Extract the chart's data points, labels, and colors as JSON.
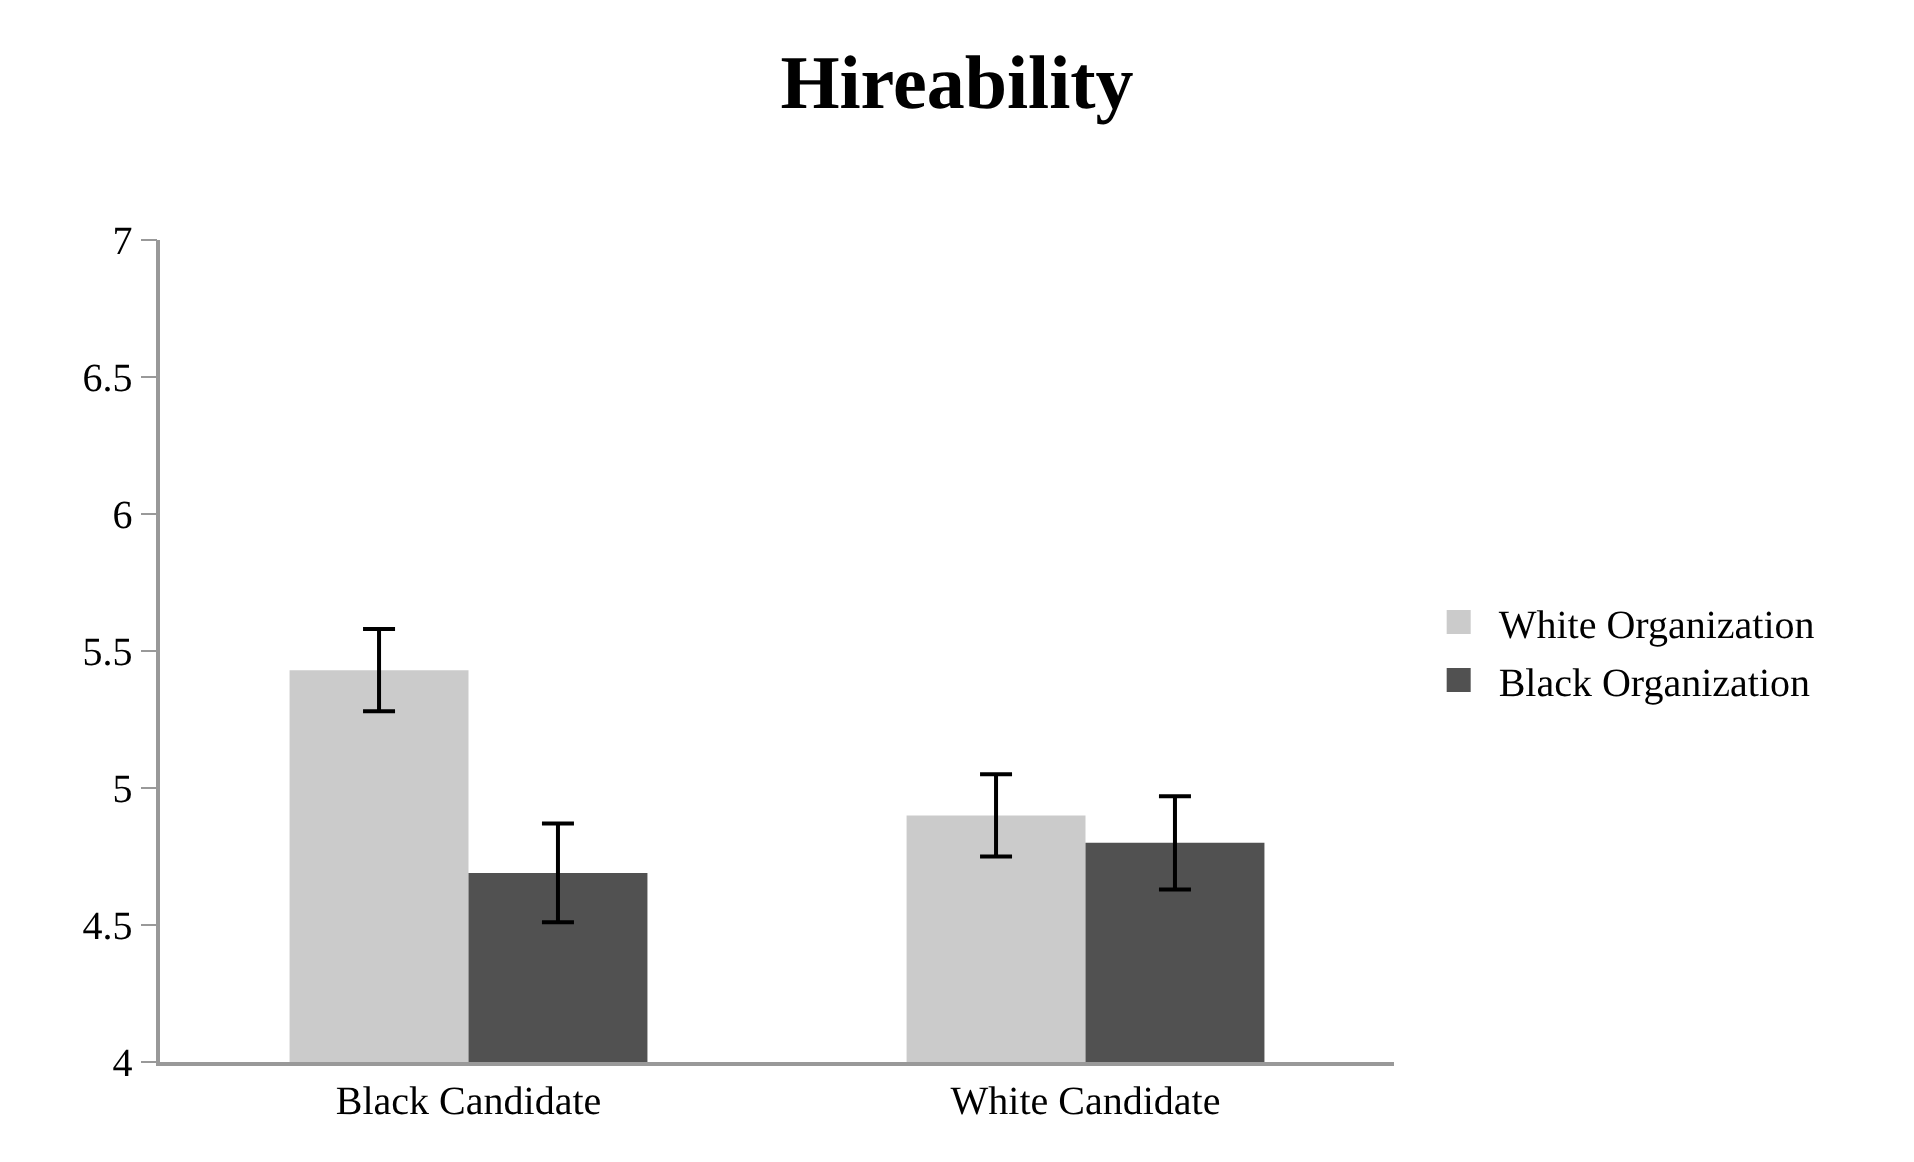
{
  "chart_data": {
    "type": "bar",
    "title": "Hireability",
    "categories": [
      "Black Candidate",
      "White Candidate"
    ],
    "series": [
      {
        "name": "White Organization",
        "color": "#cbcbcb",
        "values": [
          5.43,
          4.9
        ],
        "errors": [
          0.15,
          0.15
        ]
      },
      {
        "name": "Black Organization",
        "color": "#515151",
        "values": [
          4.69,
          4.8
        ],
        "errors": [
          0.18,
          0.17
        ]
      }
    ],
    "ylim": [
      4,
      7
    ],
    "yticks": [
      4,
      4.5,
      5,
      5.5,
      6,
      6.5,
      7
    ],
    "legend": "right"
  }
}
